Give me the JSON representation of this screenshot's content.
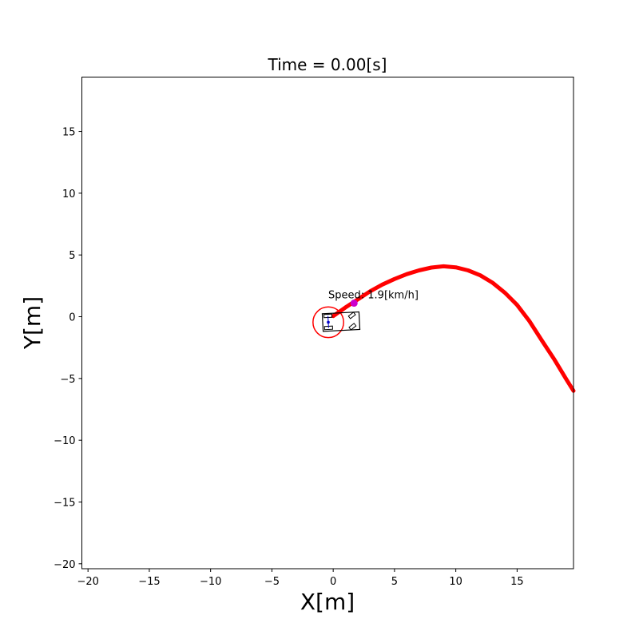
{
  "chart_data": {
    "type": "line",
    "title": "Time = 0.00[s]",
    "xlabel": "X[m]",
    "ylabel": "Y[m]",
    "xlim": [
      -20.5,
      19.6
    ],
    "ylim": [
      -20.4,
      19.4
    ],
    "xticks": [
      -20,
      -15,
      -10,
      -5,
      0,
      5,
      10,
      15
    ],
    "yticks": [
      -20,
      -15,
      -10,
      -5,
      0,
      5,
      10,
      15
    ],
    "grid": false,
    "series": [
      {
        "color": "#ff0000",
        "x": [
          0,
          1,
          2,
          3,
          4,
          5,
          6,
          7,
          8,
          9,
          10,
          11,
          12,
          13,
          14,
          15,
          16,
          17,
          18,
          19,
          19.6
        ],
        "y": [
          0.05,
          0.75,
          1.4,
          2.05,
          2.6,
          3.05,
          3.45,
          3.75,
          3.98,
          4.08,
          4.0,
          3.75,
          3.35,
          2.75,
          1.95,
          0.95,
          -0.35,
          -1.9,
          -3.4,
          -5.05,
          -6.0
        ]
      }
    ],
    "target_point": {
      "x": 1.7,
      "y": 1.1,
      "color": "#cc00cc"
    },
    "annotation": {
      "text": "Speed: 1.9[km/h]",
      "x": -0.4,
      "y": 1.5
    },
    "circle": {
      "cx": -0.4,
      "cy": -0.45,
      "r": 1.25,
      "color": "#ff0000"
    },
    "vehicle": {
      "x": -0.4,
      "y": -0.45,
      "color": "#000000",
      "axle_color": "#0000cc"
    }
  }
}
